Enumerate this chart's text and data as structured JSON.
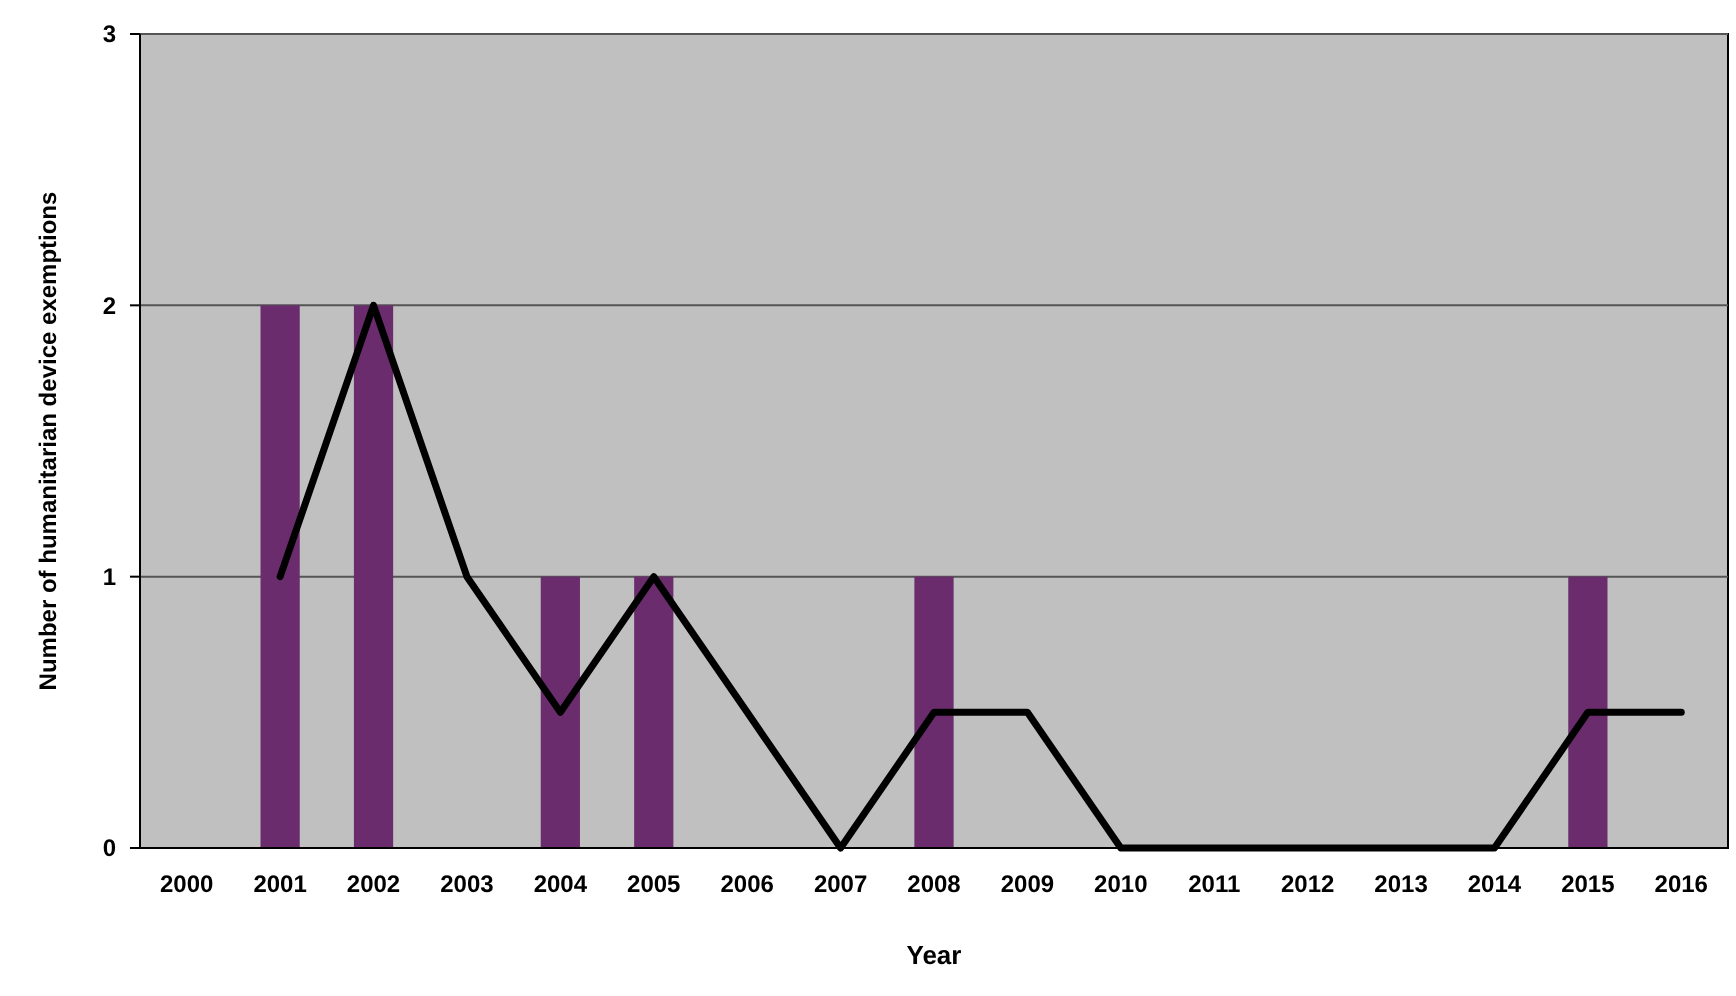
{
  "chart_data": {
    "type": "bar",
    "xlabel": "Year",
    "ylabel": "Number of humanitarian device exemptions",
    "categories": [
      "2000",
      "2001",
      "2002",
      "2003",
      "2004",
      "2005",
      "2006",
      "2007",
      "2008",
      "2009",
      "2010",
      "2011",
      "2012",
      "2013",
      "2014",
      "2015",
      "2016"
    ],
    "series": [
      {
        "color": "#6b2c6e",
        "values": [
          0,
          2,
          2,
          0,
          1,
          1,
          0,
          0,
          1,
          0,
          0,
          0,
          0,
          0,
          0,
          1,
          0
        ]
      },
      {
        "type": "line",
        "color": "#000000",
        "values": [
          null,
          1,
          2,
          1,
          0.5,
          1,
          0.5,
          0,
          0.5,
          0.5,
          0,
          0,
          0,
          0,
          0,
          0.5,
          0.5
        ]
      }
    ],
    "ylim": [
      0,
      3
    ],
    "yticks": [
      0,
      1,
      2,
      3
    ],
    "grid": "y",
    "marker": "none",
    "line_style": "solid"
  }
}
